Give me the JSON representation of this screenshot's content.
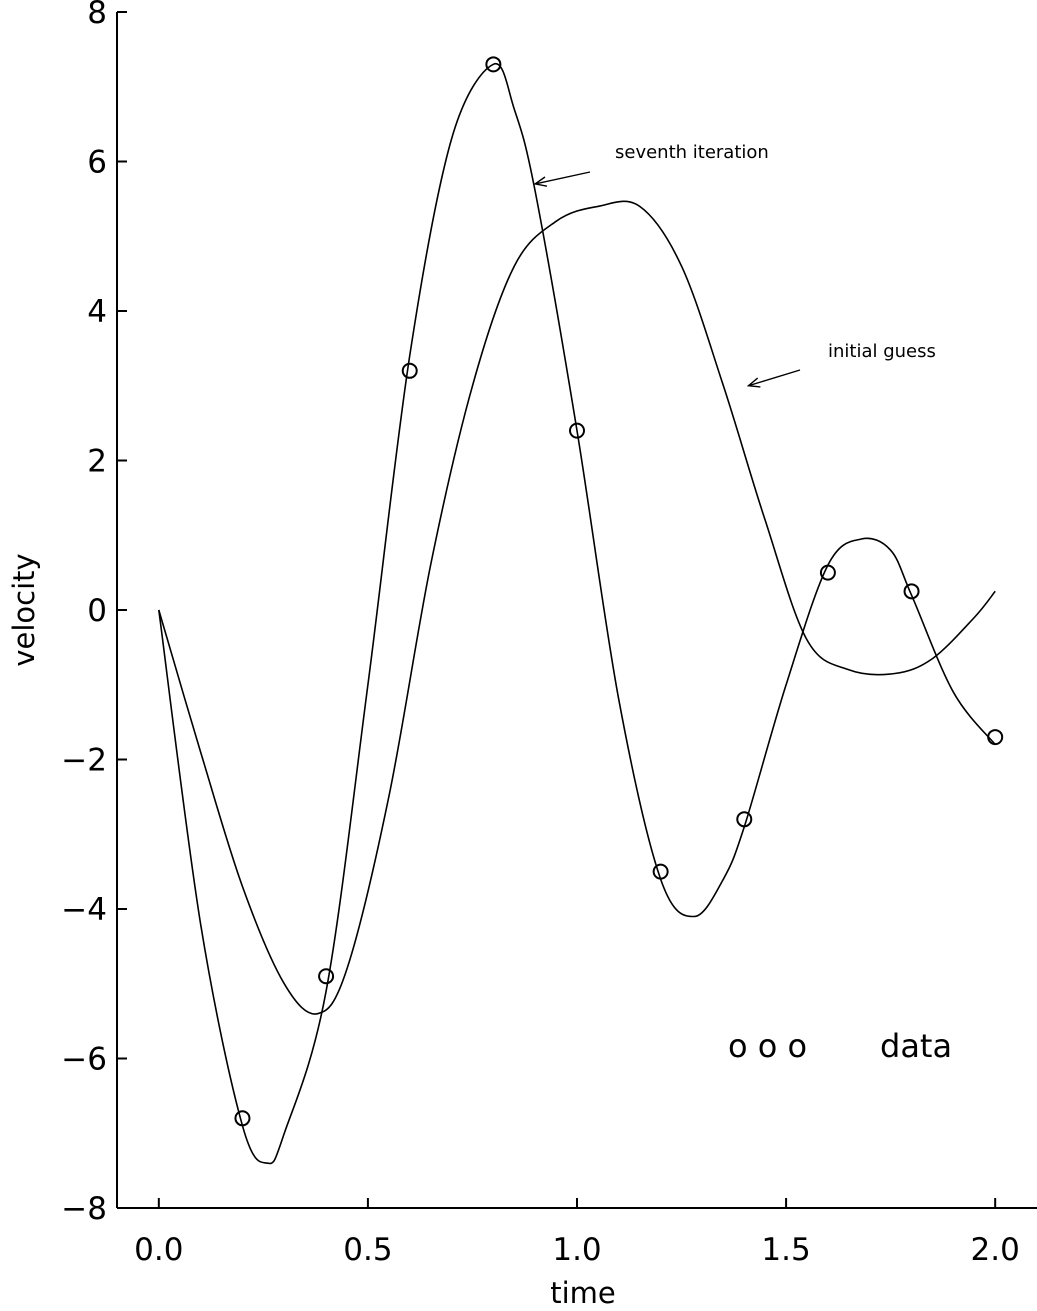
{
  "chart_data": {
    "type": "line",
    "xlabel": "time",
    "ylabel": "velocity",
    "xlim": [
      -0.1,
      2.1
    ],
    "ylim": [
      -8,
      8
    ],
    "x_ticks": [
      0.0,
      0.5,
      1.0,
      1.5,
      2.0
    ],
    "x_tick_labels": [
      "0.0",
      "0.5",
      "1.0",
      "1.5",
      "2.0"
    ],
    "y_ticks": [
      8,
      6,
      4,
      2,
      0,
      -2,
      -4,
      -6,
      -8
    ],
    "y_tick_labels": [
      "8",
      "6",
      "4",
      "2",
      "0",
      "−2",
      "−4",
      "−6",
      "−8"
    ],
    "grid": false,
    "legend": {
      "marker_label": "o  o  o",
      "label": "data",
      "position": "lower-right"
    },
    "series": [
      {
        "name": "seventh iteration",
        "kind": "line",
        "x": [
          0.0,
          0.1,
          0.2,
          0.26,
          0.3,
          0.4,
          0.5,
          0.6,
          0.7,
          0.8,
          0.85,
          0.9,
          1.0,
          1.1,
          1.2,
          1.28,
          1.35,
          1.4,
          1.5,
          1.6,
          1.68,
          1.75,
          1.8,
          1.9,
          2.0
        ],
        "y": [
          0.0,
          -4.2,
          -6.9,
          -7.4,
          -7.0,
          -5.1,
          -1.0,
          3.4,
          6.3,
          7.3,
          6.7,
          5.6,
          2.4,
          -1.2,
          -3.6,
          -4.1,
          -3.6,
          -2.9,
          -1.0,
          0.6,
          0.95,
          0.8,
          0.2,
          -1.1,
          -1.8
        ]
      },
      {
        "name": "initial guess",
        "kind": "line",
        "x": [
          0.0,
          0.1,
          0.2,
          0.3,
          0.38,
          0.45,
          0.55,
          0.65,
          0.75,
          0.85,
          0.95,
          1.05,
          1.15,
          1.25,
          1.35,
          1.45,
          1.55,
          1.65,
          1.76,
          1.85,
          1.95,
          2.0
        ],
        "y": [
          0.0,
          -1.9,
          -3.7,
          -5.0,
          -5.4,
          -4.8,
          -2.5,
          0.6,
          3.0,
          4.6,
          5.2,
          5.4,
          5.4,
          4.6,
          3.0,
          1.2,
          -0.4,
          -0.8,
          -0.85,
          -0.65,
          -0.1,
          0.25
        ]
      },
      {
        "name": "data",
        "kind": "scatter",
        "x": [
          0.2,
          0.4,
          0.6,
          0.8,
          1.0,
          1.2,
          1.4,
          1.6,
          1.8,
          2.0
        ],
        "y": [
          -6.8,
          -4.9,
          3.2,
          7.3,
          2.4,
          -3.5,
          -2.8,
          0.5,
          0.25,
          -1.7
        ]
      }
    ],
    "annotations": [
      {
        "text": "seventh iteration",
        "series": "seventh iteration",
        "arrow_to": [
          0.9,
          5.7
        ]
      },
      {
        "text": "initial guess",
        "series": "initial guess",
        "arrow_to": [
          1.41,
          3.0
        ]
      }
    ]
  }
}
